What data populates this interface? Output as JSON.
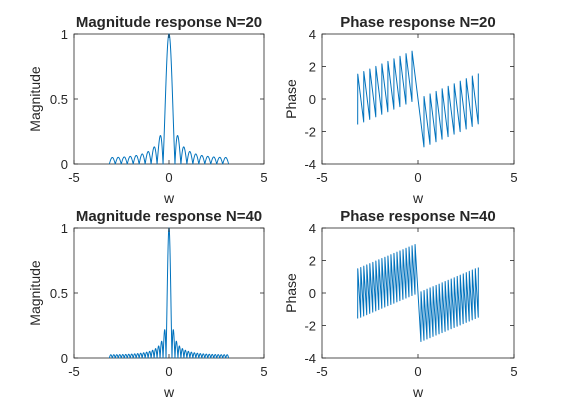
{
  "colors": {
    "line": "#0072bd",
    "axis": "#262626",
    "background": "#ffffff"
  },
  "chart_data": [
    {
      "id": "mag20",
      "type": "line",
      "title": "Magnitude response N=20",
      "xlabel": "w",
      "ylabel": "Magnitude",
      "xlim": [
        -5,
        5
      ],
      "ylim": [
        0,
        1
      ],
      "xticks": [
        -5,
        0,
        5
      ],
      "yticks": [
        0,
        0.5,
        1
      ],
      "grid": false,
      "series": [
        {
          "kind": "magnitude",
          "N": 20,
          "w_range": [
            -3.1416,
            3.1416
          ]
        }
      ]
    },
    {
      "id": "phase20",
      "type": "line",
      "title": "Phase response N=20",
      "xlabel": "w",
      "ylabel": "Phase",
      "xlim": [
        -5,
        5
      ],
      "ylim": [
        -4,
        4
      ],
      "xticks": [
        -5,
        0,
        5
      ],
      "yticks": [
        -4,
        -2,
        0,
        2,
        4
      ],
      "grid": false,
      "series": [
        {
          "kind": "phase",
          "N": 20,
          "w_range": [
            -3.1416,
            3.1416
          ]
        }
      ]
    },
    {
      "id": "mag40",
      "type": "line",
      "title": "Magnitude response N=40",
      "xlabel": "w",
      "ylabel": "Magnitude",
      "xlim": [
        -5,
        5
      ],
      "ylim": [
        0,
        1
      ],
      "xticks": [
        -5,
        0,
        5
      ],
      "yticks": [
        0,
        0.5,
        1
      ],
      "grid": false,
      "series": [
        {
          "kind": "magnitude",
          "N": 40,
          "w_range": [
            -3.1416,
            3.1416
          ]
        }
      ]
    },
    {
      "id": "phase40",
      "type": "line",
      "title": "Phase response N=40",
      "xlabel": "w",
      "ylabel": "Phase",
      "xlim": [
        -5,
        5
      ],
      "ylim": [
        -4,
        4
      ],
      "xticks": [
        -5,
        0,
        5
      ],
      "yticks": [
        -4,
        -2,
        0,
        2,
        4
      ],
      "grid": false,
      "series": [
        {
          "kind": "phase",
          "N": 40,
          "w_range": [
            -3.1416,
            3.1416
          ]
        }
      ]
    }
  ]
}
